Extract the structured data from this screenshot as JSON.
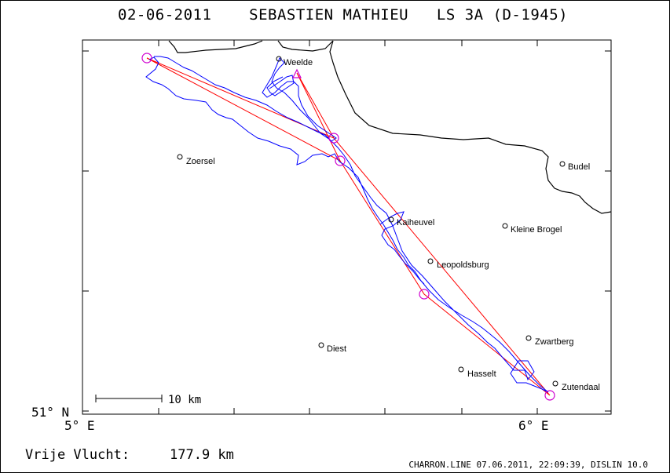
{
  "header": {
    "title": "02-06-2011    SEBASTIEN MATHIEU   LS 3A (D-1945)"
  },
  "footer": {
    "distance_label": "Vrije Vlucht:",
    "distance_value": "177.9 km",
    "credit": "CHARRON.LINE 07.06.2011, 22:09:39, DISLIN 10.0"
  },
  "axes": {
    "y_label": "51° N",
    "x_ticks": [
      "5° E",
      "6° E"
    ]
  },
  "scale_bar": {
    "label": "10 km"
  },
  "cities": [
    "Weelde",
    "Zoersel",
    "Budel",
    "Kaiheuvel",
    "Kleine Brogel",
    "Leopoldsburg",
    "Zwartberg",
    "Diest",
    "Hasselt",
    "Zutendaal"
  ],
  "colors": {
    "track": "#0000ff",
    "task": "#ff0000",
    "turnpoint": "#d000d0",
    "border": "#000000"
  }
}
